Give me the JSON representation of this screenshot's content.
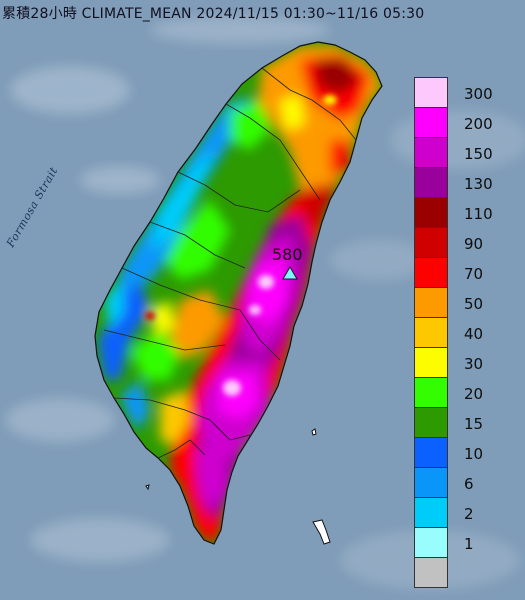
{
  "title": "累積28小時 CLIMATE_MEAN 2024/11/15 01:30~11/16 05:30",
  "strait_label": "Formosa Strait",
  "peak": {
    "value": "580",
    "icon": "triangle-marker-icon",
    "color": "#7ff5ff"
  },
  "legend": [
    {
      "label": "300",
      "color": "#fdc9fd"
    },
    {
      "label": "200",
      "color": "#fd00fd"
    },
    {
      "label": "150",
      "color": "#ce00ce"
    },
    {
      "label": "130",
      "color": "#9a009c"
    },
    {
      "label": "110",
      "color": "#9a0000"
    },
    {
      "label": "90",
      "color": "#d00000"
    },
    {
      "label": "70",
      "color": "#fd0000"
    },
    {
      "label": "50",
      "color": "#fd9a00"
    },
    {
      "label": "40",
      "color": "#fdc800"
    },
    {
      "label": "30",
      "color": "#fdfd00"
    },
    {
      "label": "20",
      "color": "#33fd00"
    },
    {
      "label": "15",
      "color": "#2c9a00"
    },
    {
      "label": "10",
      "color": "#0a61fd"
    },
    {
      "label": "6",
      "color": "#0996f8"
    },
    {
      "label": "2",
      "color": "#00ccf9"
    },
    {
      "label": "1",
      "color": "#9afdfd"
    },
    {
      "label": "",
      "color": "#c1c1c1"
    }
  ]
}
